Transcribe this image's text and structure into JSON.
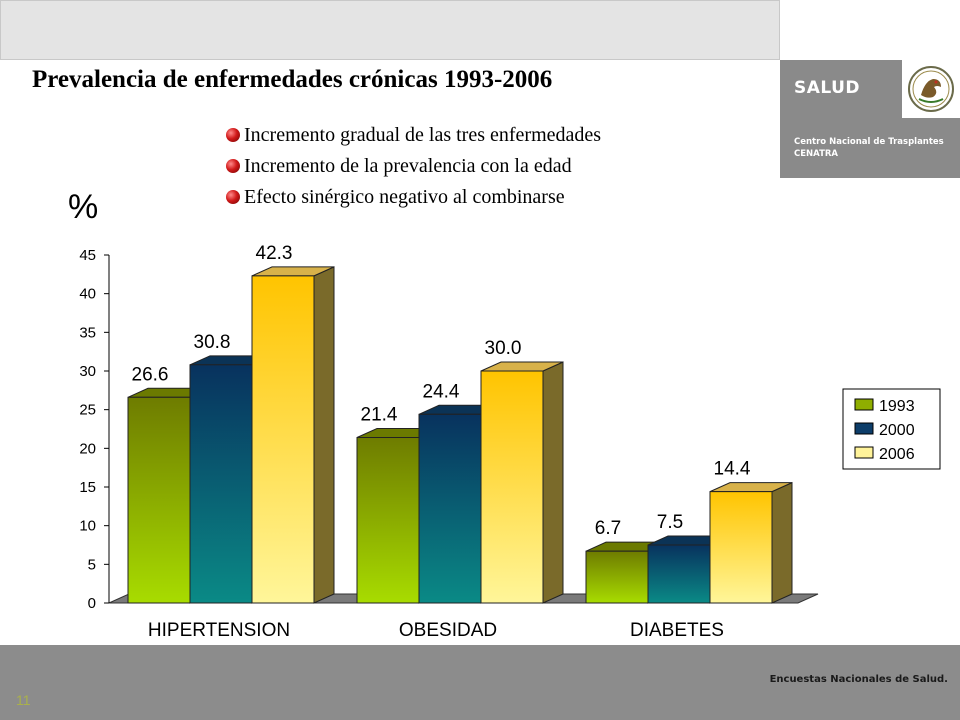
{
  "header": {
    "title": "Prevalencia de enfermedades crónicas 1993-2006"
  },
  "logo": {
    "brand": "SALUD",
    "line1": "Centro Nacional de Trasplantes",
    "line2": "CENATRA",
    "seal_icon": "mexican-eagle-seal-icon"
  },
  "bullets": [
    "Incremento  gradual de las tres enfermedades",
    "Incremento de  la prevalencia con la edad",
    "Efecto sinérgico negativo al combinarse"
  ],
  "footer": {
    "source": "Encuestas Nacionales de Salud.",
    "page": "11"
  },
  "colors": {
    "s1993": "#8fae00",
    "s2000": "#0d3d69",
    "s2006": "#ffcc22",
    "footer": "#8c8c8c"
  },
  "chart_data": {
    "type": "bar",
    "title": "",
    "xlabel": "",
    "ylabel": "%",
    "categories": [
      "HIPERTENSION",
      "OBESIDAD",
      "DIABETES"
    ],
    "series": [
      {
        "name": "1993",
        "values": [
          26.6,
          21.4,
          6.7
        ],
        "labels": [
          "26.6",
          "21.4",
          "6.7"
        ]
      },
      {
        "name": "2000",
        "values": [
          30.8,
          24.4,
          7.5
        ],
        "labels": [
          "30.8",
          "24.4",
          "7.5"
        ]
      },
      {
        "name": "2006",
        "values": [
          42.3,
          30.0,
          14.4
        ],
        "labels": [
          "42.3",
          "30.0",
          "14.4"
        ]
      }
    ],
    "ylim": [
      0,
      45
    ],
    "yticks": [
      "0",
      "5",
      "10",
      "15",
      "20",
      "25",
      "30",
      "35",
      "40",
      "45"
    ],
    "legend": "right",
    "grid": false,
    "style": "3d-clustered-bar"
  }
}
